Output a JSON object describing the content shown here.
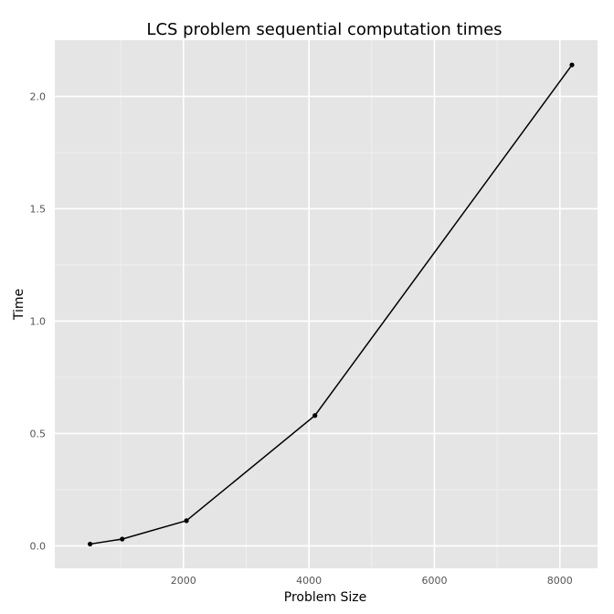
{
  "chart_data": {
    "type": "line",
    "title": "LCS problem sequential computation times",
    "xlabel": "Problem Size",
    "ylabel": "Time",
    "xlim": [
      -50,
      8600
    ],
    "ylim": [
      -0.1,
      2.25
    ],
    "x_ticks": [
      {
        "value": 2000,
        "label": "2000"
      },
      {
        "value": 4000,
        "label": "4000"
      },
      {
        "value": 6000,
        "label": "6000"
      },
      {
        "value": 8000,
        "label": "8000"
      }
    ],
    "y_ticks": [
      {
        "value": 0.0,
        "label": "0.0"
      },
      {
        "value": 0.5,
        "label": "0.5"
      },
      {
        "value": 1.0,
        "label": "1.0"
      },
      {
        "value": 1.5,
        "label": "1.5"
      },
      {
        "value": 2.0,
        "label": "2.0"
      }
    ],
    "x_minor": [
      1000,
      3000,
      5000,
      7000
    ],
    "y_minor": [
      0.25,
      0.75,
      1.25,
      1.75
    ],
    "series": [
      {
        "x": [
          512,
          1024,
          2048,
          4096,
          8192
        ],
        "values": [
          0.008,
          0.03,
          0.112,
          0.58,
          2.14
        ]
      }
    ],
    "grid": true,
    "legend": "none",
    "colors": {
      "panel": "#e5e5e5",
      "grid_major": "#ffffff",
      "grid_minor": "#f2f2f2",
      "line": "#000000"
    }
  }
}
